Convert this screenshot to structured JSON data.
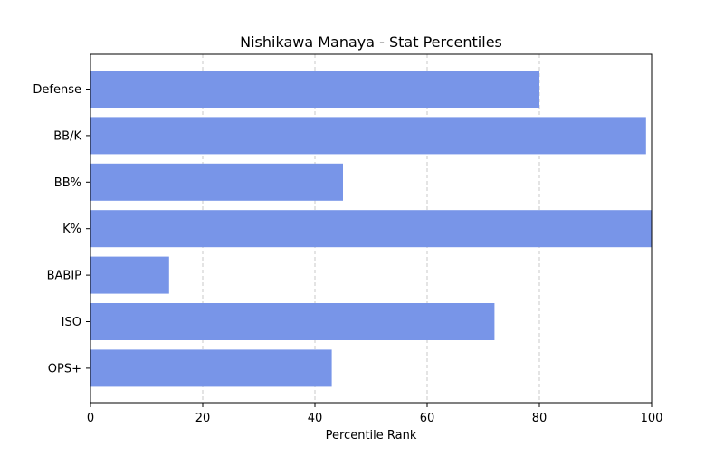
{
  "chart_data": {
    "type": "bar",
    "orientation": "horizontal",
    "title": "Nishikawa Manaya - Stat Percentiles",
    "xlabel": "Percentile Rank",
    "ylabel": "",
    "categories": [
      "Defense",
      "BB/K",
      "BB%",
      "K%",
      "BABIP",
      "ISO",
      "OPS+"
    ],
    "values": [
      80,
      99,
      45,
      100,
      14,
      72,
      43
    ],
    "xlim": [
      0,
      100
    ],
    "xticks": [
      0,
      20,
      40,
      60,
      80,
      100
    ],
    "grid": "x-dashed",
    "bar_color": "#7895e8",
    "grid_color": "#c8c8c8"
  }
}
